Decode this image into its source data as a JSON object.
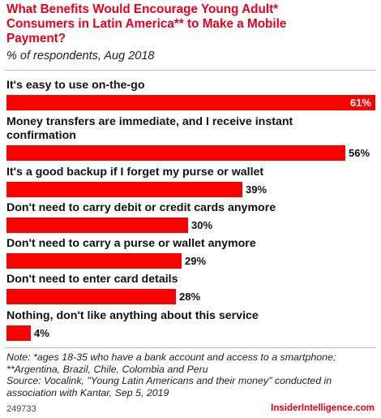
{
  "header": {
    "title_line1": "What Benefits Would Encourage Young Adult*",
    "title_line2": "Consumers in Latin America** to Make a Mobile",
    "title_line3": "Payment?",
    "subtitle": "% of respondents, Aug 2018"
  },
  "chart_data": {
    "type": "bar",
    "orientation": "horizontal",
    "title": "What Benefits Would Encourage Young Adult* Consumers in Latin America** to Make a Mobile Payment?",
    "subtitle": "% of respondents, Aug 2018",
    "categories": [
      [
        "It's easy to use on-the-go"
      ],
      [
        "Money transfers are immediate, and I receive instant",
        "confirmation"
      ],
      [
        "It's a good backup if I forget my purse or wallet"
      ],
      [
        "Don't need to carry debit or credit cards anymore"
      ],
      [
        "Don't need to carry a purse or wallet anymore"
      ],
      [
        "Don't need to enter card details"
      ],
      [
        "Nothing, don't like anything about this service"
      ]
    ],
    "values": [
      61,
      56,
      39,
      30,
      29,
      28,
      4
    ],
    "value_labels": [
      "61%",
      "56%",
      "39%",
      "30%",
      "29%",
      "28%",
      "4%"
    ],
    "xlim": [
      0,
      61
    ],
    "bar_color": "#ff0000",
    "grid": false,
    "legend": "none"
  },
  "footer": {
    "note1": "Note: *ages 18-35 who have a bank account and access to a smartphone;",
    "note2": "**Argentina, Brazil, Chile, Colombia and Peru",
    "source1": "Source: Vocalink, \"Young Latin Americans and their money\" conducted in",
    "source2": "association with Kantar, Sep 5, 2019",
    "chart_id": "249733",
    "brand": "InsiderIntelligence.com"
  }
}
